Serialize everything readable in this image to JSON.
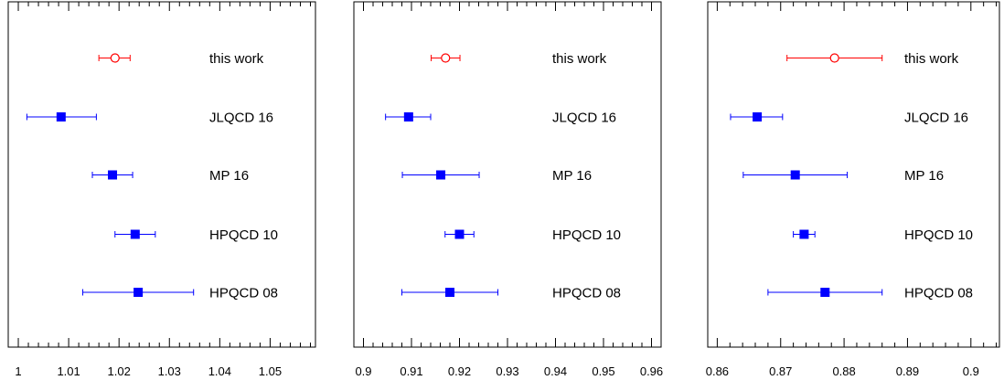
{
  "chart_data": [
    {
      "type": "scatter",
      "xlim": [
        0.998,
        1.059
      ],
      "xticks": [
        1,
        1.01,
        1.02,
        1.03,
        1.04,
        1.05
      ],
      "xtick_labels": [
        "1",
        "1.01",
        "1.02",
        "1.03",
        "1.04",
        "1.05"
      ],
      "grid": false,
      "points": [
        {
          "label": "this work",
          "value": 1.0192,
          "err_low": 0.0032,
          "err_high": 0.003,
          "marker": "open-circle",
          "color": "#ff0000"
        },
        {
          "label": "JLQCD 16",
          "value": 1.0085,
          "err_low": 0.0068,
          "err_high": 0.007,
          "marker": "filled-square",
          "color": "#0000ff"
        },
        {
          "label": "MP 16",
          "value": 1.0187,
          "err_low": 0.004,
          "err_high": 0.004,
          "marker": "filled-square",
          "color": "#0000ff"
        },
        {
          "label": "HPQCD 10",
          "value": 1.0232,
          "err_low": 0.004,
          "err_high": 0.004,
          "marker": "filled-square",
          "color": "#0000ff"
        },
        {
          "label": "HPQCD 08",
          "value": 1.0238,
          "err_low": 0.011,
          "err_high": 0.011,
          "marker": "filled-square",
          "color": "#0000ff"
        }
      ]
    },
    {
      "type": "scatter",
      "xlim": [
        0.898,
        0.962
      ],
      "xticks": [
        0.9,
        0.91,
        0.92,
        0.93,
        0.94,
        0.95,
        0.96
      ],
      "xtick_labels": [
        "0.9",
        "0.91",
        "0.92",
        "0.93",
        "0.94",
        "0.95",
        "0.96"
      ],
      "grid": false,
      "points": [
        {
          "label": "this work",
          "value": 0.9171,
          "err_low": 0.003,
          "err_high": 0.003,
          "marker": "open-circle",
          "color": "#ff0000"
        },
        {
          "label": "JLQCD 16",
          "value": 0.9094,
          "err_low": 0.0048,
          "err_high": 0.0046,
          "marker": "filled-square",
          "color": "#0000ff"
        },
        {
          "label": "MP 16",
          "value": 0.9161,
          "err_low": 0.008,
          "err_high": 0.008,
          "marker": "filled-square",
          "color": "#0000ff"
        },
        {
          "label": "HPQCD 10",
          "value": 0.92,
          "err_low": 0.003,
          "err_high": 0.003,
          "marker": "filled-square",
          "color": "#0000ff"
        },
        {
          "label": "HPQCD 08",
          "value": 0.918,
          "err_low": 0.01,
          "err_high": 0.01,
          "marker": "filled-square",
          "color": "#0000ff"
        }
      ]
    },
    {
      "type": "scatter",
      "xlim": [
        0.8585,
        0.9045
      ],
      "xticks": [
        0.86,
        0.87,
        0.88,
        0.89,
        0.9
      ],
      "xtick_labels": [
        "0.86",
        "0.87",
        "0.88",
        "0.89",
        "0.9"
      ],
      "grid": false,
      "points": [
        {
          "label": "this work",
          "value": 0.8785,
          "err_low": 0.0075,
          "err_high": 0.0075,
          "marker": "open-circle",
          "color": "#ff0000"
        },
        {
          "label": "JLQCD 16",
          "value": 0.8663,
          "err_low": 0.0042,
          "err_high": 0.004,
          "marker": "filled-square",
          "color": "#0000ff"
        },
        {
          "label": "MP 16",
          "value": 0.8723,
          "err_low": 0.0082,
          "err_high": 0.0082,
          "marker": "filled-square",
          "color": "#0000ff"
        },
        {
          "label": "HPQCD 10",
          "value": 0.8737,
          "err_low": 0.0017,
          "err_high": 0.0017,
          "marker": "filled-square",
          "color": "#0000ff"
        },
        {
          "label": "HPQCD 08",
          "value": 0.877,
          "err_low": 0.009,
          "err_high": 0.009,
          "marker": "filled-square",
          "color": "#0000ff"
        }
      ]
    }
  ]
}
